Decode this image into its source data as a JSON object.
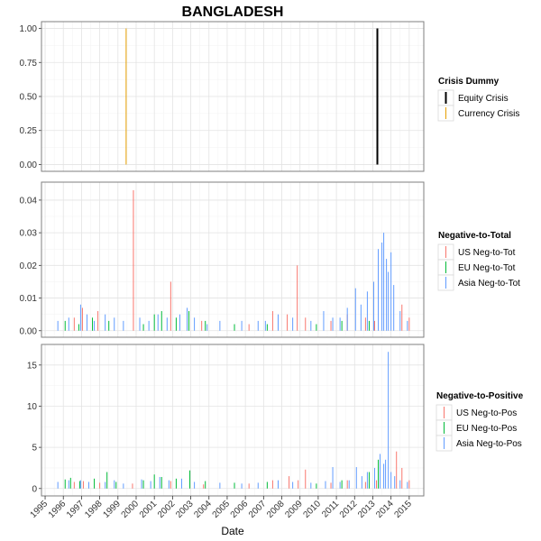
{
  "chart_data": {
    "type": "multi-panel",
    "title": "BANGLADESH",
    "xlabel": "Date",
    "x_axis": {
      "xlim": [
        1994.8,
        2015.8
      ],
      "ticks": [
        "1995",
        "1996",
        "1997",
        "1998",
        "1999",
        "2000",
        "2001",
        "2002",
        "2003",
        "2004",
        "2005",
        "2006",
        "2007",
        "2008",
        "2009",
        "2010",
        "2011",
        "2012",
        "2013",
        "2014",
        "2015"
      ],
      "tick_values": [
        1995,
        1996,
        1997,
        1998,
        1999,
        2000,
        2001,
        2002,
        2003,
        2004,
        2005,
        2006,
        2007,
        2008,
        2009,
        2010,
        2011,
        2012,
        2013,
        2014,
        2015
      ]
    },
    "grid": true,
    "legend_placement": "right",
    "colors": {
      "red": "#F8766D",
      "green": "#00BA38",
      "blue": "#619CFF",
      "equity": "#000000",
      "currency": "#E69F00"
    },
    "panels": [
      {
        "legend_title": "Crisis Dummy",
        "ylim": [
          -0.05,
          1.05
        ],
        "yticks": [
          "0.00",
          "0.25",
          "0.50",
          "0.75",
          "1.00"
        ],
        "ytick_values": [
          0,
          0.25,
          0.5,
          0.75,
          1.0
        ],
        "series": [
          {
            "name": "Equity Crisis",
            "color": "#000000",
            "width": 2,
            "points": [
              [
                2013.25,
                1.0
              ]
            ]
          },
          {
            "name": "Currency Crisis",
            "color": "#E69F00",
            "width": 1,
            "points": [
              [
                1999.45,
                1.0
              ]
            ]
          }
        ]
      },
      {
        "legend_title": "Negative-to-Total",
        "ylim": [
          -0.002,
          0.0455
        ],
        "yticks": [
          "0.00",
          "0.01",
          "0.02",
          "0.03",
          "0.04"
        ],
        "ytick_values": [
          0,
          0.01,
          0.02,
          0.03,
          0.04
        ],
        "series": [
          {
            "name": "US Neg-to-Tot",
            "color": "#F8766D",
            "width": 1,
            "points": [
              [
                1996.6,
                0.004
              ],
              [
                1997.05,
                0.007
              ],
              [
                1997.9,
                0.006
              ],
              [
                1999.85,
                0.043
              ],
              [
                2001.9,
                0.015
              ],
              [
                2003.6,
                0.003
              ],
              [
                2006.2,
                0.002
              ],
              [
                2007.5,
                0.006
              ],
              [
                2008.3,
                0.005
              ],
              [
                2008.85,
                0.02
              ],
              [
                2009.3,
                0.004
              ],
              [
                2010.7,
                0.003
              ],
              [
                2011.6,
                0.005
              ],
              [
                2012.6,
                0.004
              ],
              [
                2013.1,
                0.003
              ],
              [
                2014.6,
                0.008
              ],
              [
                2015.0,
                0.004
              ]
            ]
          },
          {
            "name": "EU Neg-to-Tot",
            "color": "#00BA38",
            "width": 1,
            "points": [
              [
                1996.1,
                0.003
              ],
              [
                1996.85,
                0.002
              ],
              [
                1997.6,
                0.004
              ],
              [
                1998.5,
                0.003
              ],
              [
                2000.4,
                0.002
              ],
              [
                2001.0,
                0.005
              ],
              [
                2001.4,
                0.006
              ],
              [
                2002.2,
                0.004
              ],
              [
                2002.9,
                0.006
              ],
              [
                2003.8,
                0.003
              ],
              [
                2005.4,
                0.002
              ],
              [
                2007.2,
                0.002
              ],
              [
                2009.9,
                0.002
              ],
              [
                2011.3,
                0.003
              ],
              [
                2012.8,
                0.003
              ]
            ]
          },
          {
            "name": "Asia Neg-to-Tot",
            "color": "#619CFF",
            "width": 1,
            "points": [
              [
                1995.7,
                0.003
              ],
              [
                1996.3,
                0.004
              ],
              [
                1996.95,
                0.008
              ],
              [
                1997.3,
                0.005
              ],
              [
                1997.7,
                0.003
              ],
              [
                1998.3,
                0.005
              ],
              [
                1998.8,
                0.004
              ],
              [
                1999.3,
                0.003
              ],
              [
                2000.2,
                0.004
              ],
              [
                2000.7,
                0.003
              ],
              [
                2001.2,
                0.005
              ],
              [
                2001.7,
                0.004
              ],
              [
                2002.4,
                0.005
              ],
              [
                2002.8,
                0.007
              ],
              [
                2003.2,
                0.004
              ],
              [
                2003.9,
                0.002
              ],
              [
                2004.6,
                0.003
              ],
              [
                2005.8,
                0.003
              ],
              [
                2006.7,
                0.003
              ],
              [
                2007.1,
                0.003
              ],
              [
                2007.8,
                0.005
              ],
              [
                2008.6,
                0.004
              ],
              [
                2009.6,
                0.003
              ],
              [
                2010.3,
                0.006
              ],
              [
                2010.8,
                0.004
              ],
              [
                2011.2,
                0.004
              ],
              [
                2011.6,
                0.007
              ],
              [
                2012.05,
                0.013
              ],
              [
                2012.35,
                0.008
              ],
              [
                2012.7,
                0.012
              ],
              [
                2013.05,
                0.015
              ],
              [
                2013.3,
                0.025
              ],
              [
                2013.5,
                0.027
              ],
              [
                2013.6,
                0.03
              ],
              [
                2013.75,
                0.022
              ],
              [
                2013.85,
                0.018
              ],
              [
                2014.0,
                0.024
              ],
              [
                2014.15,
                0.014
              ],
              [
                2014.5,
                0.006
              ],
              [
                2014.9,
                0.003
              ]
            ]
          }
        ]
      },
      {
        "legend_title": "Negative-to-Positive",
        "ylim": [
          -0.9,
          17.5
        ],
        "yticks": [
          "0",
          "5",
          "10",
          "15"
        ],
        "ytick_values": [
          0,
          5,
          10,
          15
        ],
        "series": [
          {
            "name": "US Neg-to-Pos",
            "color": "#F8766D",
            "width": 1,
            "points": [
              [
                1996.6,
                0.8
              ],
              [
                1997.1,
                0.9
              ],
              [
                1998.0,
                0.7
              ],
              [
                1999.8,
                0.6
              ],
              [
                2001.9,
                0.9
              ],
              [
                2003.7,
                0.5
              ],
              [
                2006.2,
                0.6
              ],
              [
                2007.5,
                1.0
              ],
              [
                2008.4,
                1.5
              ],
              [
                2008.9,
                1.0
              ],
              [
                2009.3,
                2.3
              ],
              [
                2010.7,
                0.7
              ],
              [
                2011.6,
                1.0
              ],
              [
                2012.6,
                0.8
              ],
              [
                2013.2,
                1.0
              ],
              [
                2014.3,
                4.5
              ],
              [
                2014.6,
                2.5
              ],
              [
                2015.0,
                1.0
              ]
            ]
          },
          {
            "name": "EU Neg-to-Pos",
            "color": "#00BA38",
            "width": 1,
            "points": [
              [
                1996.1,
                1.1
              ],
              [
                1996.4,
                1.3
              ],
              [
                1996.9,
                0.9
              ],
              [
                1997.7,
                1.2
              ],
              [
                1998.4,
                2.0
              ],
              [
                1998.9,
                0.8
              ],
              [
                2000.4,
                1.0
              ],
              [
                2001.0,
                1.7
              ],
              [
                2001.4,
                1.4
              ],
              [
                2002.2,
                1.2
              ],
              [
                2002.95,
                2.2
              ],
              [
                2003.8,
                0.9
              ],
              [
                2005.4,
                0.7
              ],
              [
                2007.2,
                0.8
              ],
              [
                2009.9,
                0.6
              ],
              [
                2011.3,
                1.0
              ],
              [
                2012.8,
                2.0
              ],
              [
                2013.3,
                3.5
              ]
            ]
          },
          {
            "name": "Asia Neg-to-Pos",
            "color": "#619CFF",
            "width": 1,
            "points": [
              [
                1995.7,
                0.8
              ],
              [
                1996.3,
                1.0
              ],
              [
                1996.95,
                1.0
              ],
              [
                1997.4,
                0.8
              ],
              [
                1998.3,
                0.8
              ],
              [
                1998.8,
                1.0
              ],
              [
                1999.3,
                0.6
              ],
              [
                2000.3,
                1.1
              ],
              [
                2000.8,
                0.9
              ],
              [
                2001.3,
                1.4
              ],
              [
                2001.8,
                1.0
              ],
              [
                2002.5,
                1.2
              ],
              [
                2003.2,
                0.8
              ],
              [
                2004.6,
                0.7
              ],
              [
                2005.8,
                0.6
              ],
              [
                2006.7,
                0.7
              ],
              [
                2007.8,
                1.0
              ],
              [
                2008.6,
                0.8
              ],
              [
                2009.6,
                0.7
              ],
              [
                2010.4,
                0.9
              ],
              [
                2010.8,
                2.6
              ],
              [
                2011.2,
                0.8
              ],
              [
                2011.7,
                1.0
              ],
              [
                2012.1,
                2.6
              ],
              [
                2012.4,
                1.5
              ],
              [
                2012.7,
                2.0
              ],
              [
                2013.1,
                2.5
              ],
              [
                2013.4,
                4.2
              ],
              [
                2013.6,
                3.0
              ],
              [
                2013.7,
                3.5
              ],
              [
                2013.85,
                16.6
              ],
              [
                2014.0,
                2.0
              ],
              [
                2014.2,
                1.5
              ],
              [
                2014.5,
                1.0
              ],
              [
                2014.9,
                0.8
              ]
            ]
          }
        ]
      }
    ]
  }
}
